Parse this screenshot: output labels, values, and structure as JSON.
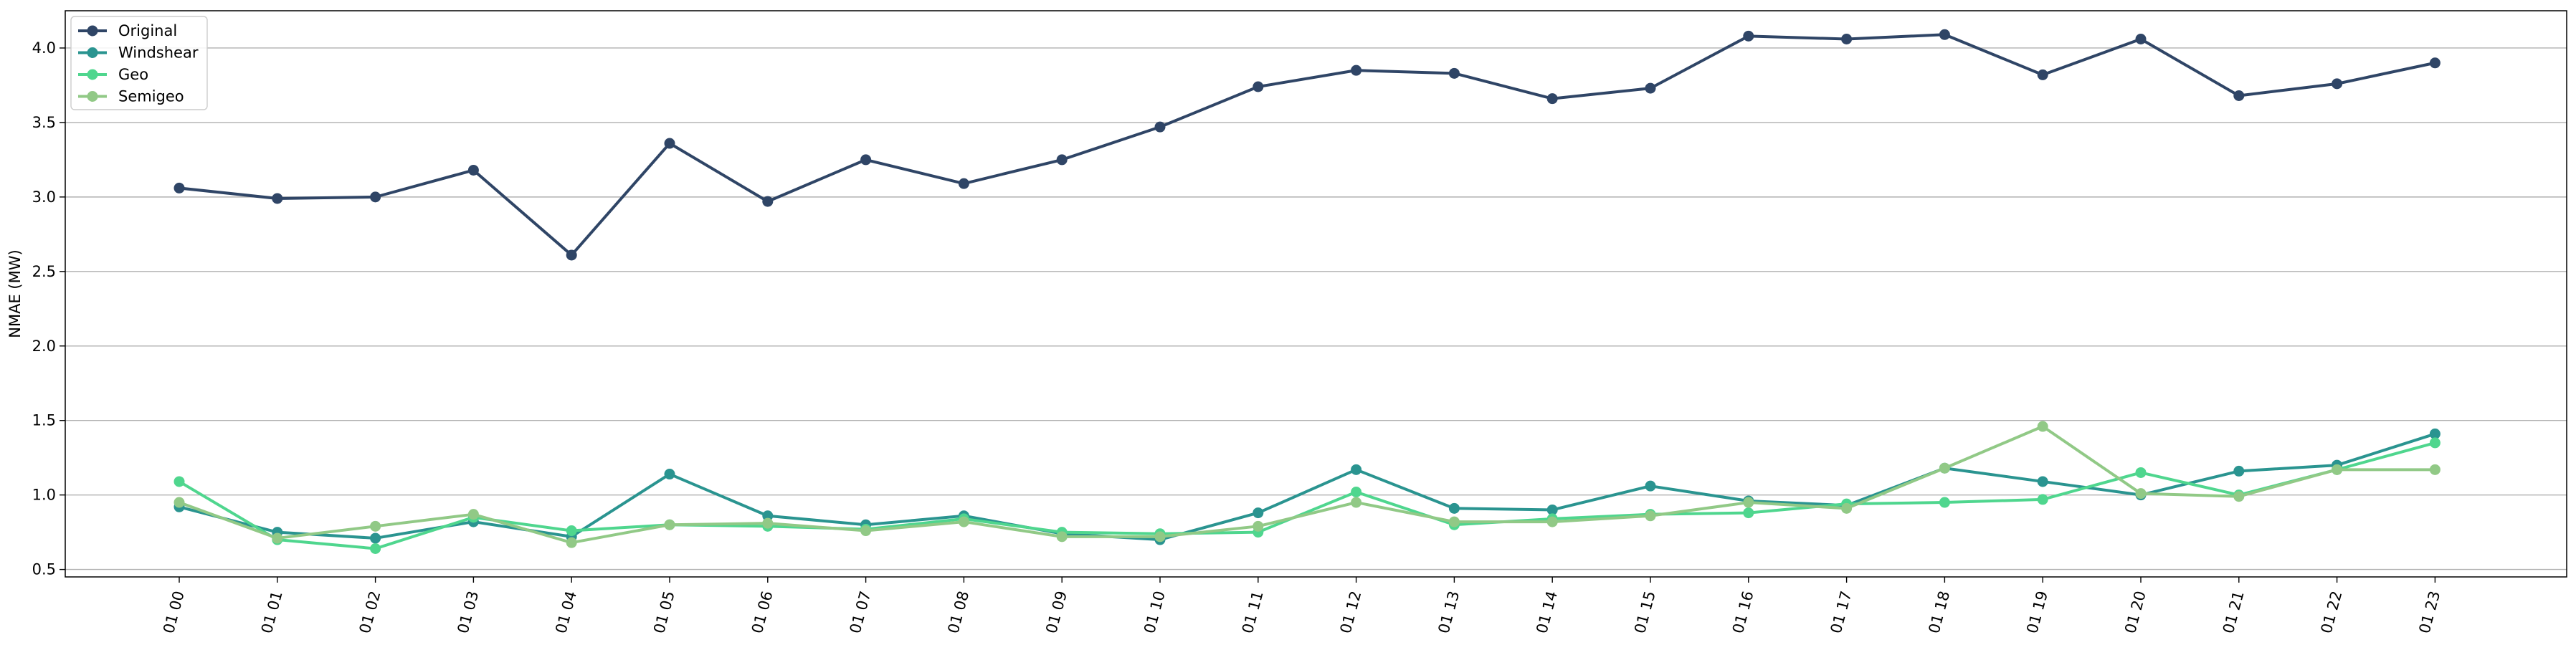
{
  "chart_data": {
    "type": "line",
    "title": "",
    "xlabel": "",
    "ylabel": "NMAE (MW)",
    "ylim": [
      0.45,
      4.25
    ],
    "yticks": [
      0.5,
      1.0,
      1.5,
      2.0,
      2.5,
      3.0,
      3.5,
      4.0
    ],
    "ytick_labels": [
      "0.5",
      "1.0",
      "1.5",
      "2.0",
      "2.5",
      "3.0",
      "3.5",
      "4.0"
    ],
    "grid": "horizontal",
    "legend_position": "top-left",
    "categories": [
      "01 00",
      "01 01",
      "01 02",
      "01 03",
      "01 04",
      "01 05",
      "01 06",
      "01 07",
      "01 08",
      "01 09",
      "01 10",
      "01 11",
      "01 12",
      "01 13",
      "01 14",
      "01 15",
      "01 16",
      "01 17",
      "01 18",
      "01 19",
      "01 20",
      "01 21",
      "01 22",
      "01 23"
    ],
    "series": [
      {
        "name": "Original",
        "color": "#2f4566",
        "values": [
          3.06,
          2.99,
          3.0,
          3.18,
          2.61,
          3.36,
          2.97,
          3.25,
          3.09,
          3.25,
          3.47,
          3.74,
          3.85,
          3.83,
          3.66,
          3.73,
          4.08,
          4.06,
          4.09,
          3.82,
          4.06,
          3.68,
          3.76,
          3.9
        ]
      },
      {
        "name": "Windshear",
        "color": "#2a9490",
        "values": [
          0.92,
          0.75,
          0.71,
          0.82,
          0.72,
          1.14,
          0.86,
          0.8,
          0.86,
          0.74,
          0.7,
          0.88,
          1.17,
          0.91,
          0.9,
          1.06,
          0.96,
          0.93,
          1.18,
          1.09,
          1.0,
          1.16,
          1.2,
          1.41
        ]
      },
      {
        "name": "Geo",
        "color": "#4fd68e",
        "values": [
          1.09,
          0.7,
          0.64,
          0.85,
          0.76,
          0.8,
          0.79,
          0.77,
          0.84,
          0.75,
          0.74,
          0.75,
          1.02,
          0.8,
          0.84,
          0.87,
          0.88,
          0.94,
          0.95,
          0.97,
          1.15,
          1.0,
          1.17,
          1.35
        ]
      },
      {
        "name": "Semigeo",
        "color": "#91c986",
        "values": [
          0.95,
          0.71,
          0.79,
          0.87,
          0.68,
          0.8,
          0.81,
          0.76,
          0.82,
          0.72,
          0.72,
          0.79,
          0.95,
          0.82,
          0.82,
          0.86,
          0.95,
          0.91,
          1.18,
          1.46,
          1.01,
          0.99,
          1.17,
          1.17
        ]
      }
    ]
  }
}
